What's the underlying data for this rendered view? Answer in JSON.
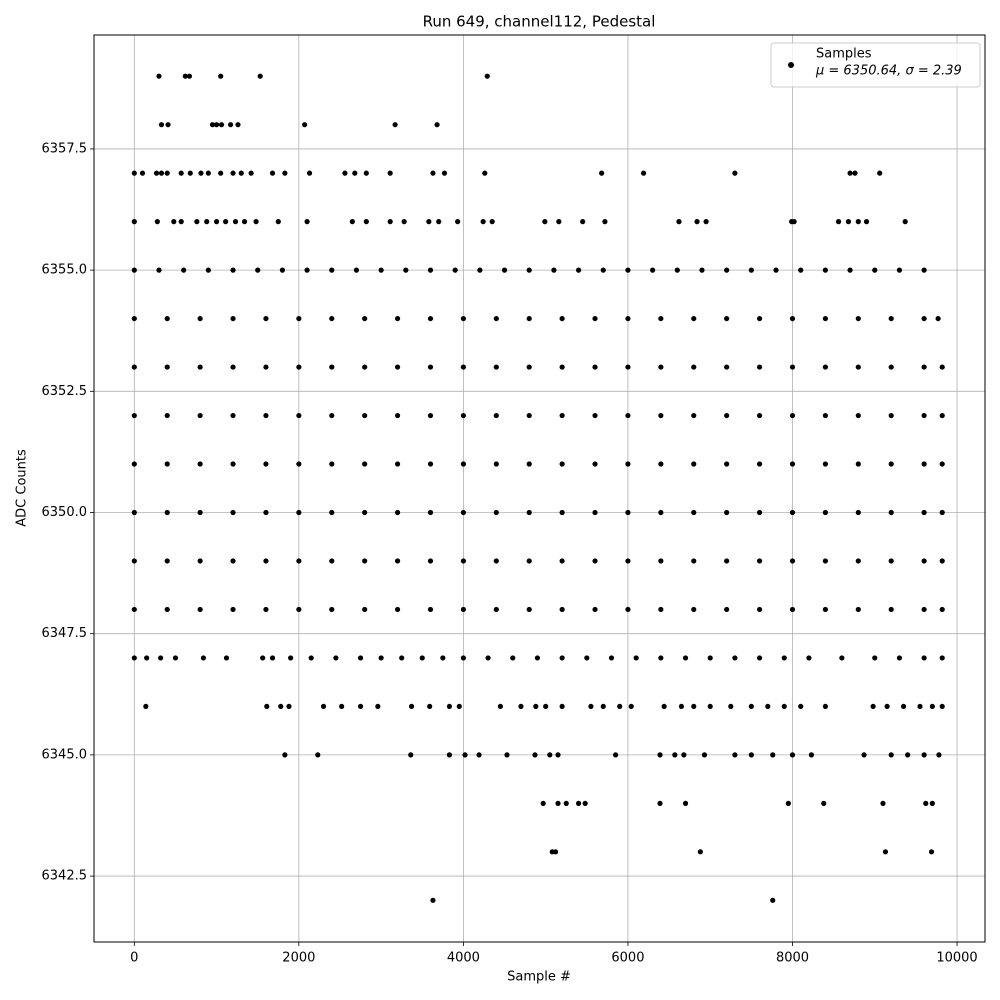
{
  "chart_data": {
    "type": "scatter",
    "title": "Run 649, channel112, Pedestal",
    "xlabel": "Sample #",
    "ylabel": "ADC Counts",
    "xlim": [
      -490,
      10340
    ],
    "ylim": [
      6341.14,
      6359.85
    ],
    "xticks": [
      0,
      2000,
      4000,
      6000,
      8000,
      10000
    ],
    "yticks": [
      6342.5,
      {
        "value": 6345,
        "label": "6345.0"
      },
      6347.5,
      {
        "value": 6350,
        "label": "6350.0"
      },
      6352.5,
      {
        "value": 6355,
        "label": "6355.0"
      },
      6357.5
    ],
    "grid": true,
    "legend": "upper right",
    "series": [
      {
        "name": "Samples",
        "stats": "μ = 6350.64, σ = 2.39",
        "color": "#000000",
        "x": [
          300,
          620,
          670,
          1050,
          1530,
          4290,
          330,
          410,
          950,
          1000,
          1060,
          1170,
          1260,
          2070,
          3170,
          3680,
          0,
          100,
          270,
          330,
          400,
          570,
          680,
          810,
          900,
          1050,
          1200,
          1300,
          1420,
          1680,
          1830,
          2130,
          2560,
          2680,
          2820,
          3110,
          3630,
          3770,
          4260,
          5680,
          6190,
          7300,
          8700,
          8760,
          9060,
          0,
          280,
          480,
          570,
          760,
          880,
          1000,
          1110,
          1230,
          1340,
          1480,
          1750,
          2100,
          2650,
          2820,
          3110,
          3280,
          3580,
          3700,
          3930,
          4240,
          4350,
          4990,
          5160,
          5450,
          5720,
          6620,
          6840,
          6950,
          7990,
          8020,
          8560,
          8680,
          8800,
          8900,
          9370,
          0,
          300,
          600,
          900,
          1200,
          1500,
          1800,
          2100,
          2400,
          2700,
          3000,
          3300,
          3600,
          3900,
          4200,
          4500,
          4800,
          5100,
          5400,
          5700,
          6000,
          6300,
          6600,
          6900,
          7200,
          7500,
          7800,
          8100,
          8400,
          8700,
          9000,
          9300,
          9600,
          0,
          400,
          800,
          1200,
          1600,
          2000,
          2400,
          2800,
          3200,
          3600,
          4000,
          4400,
          4800,
          5200,
          5600,
          6000,
          6400,
          6800,
          7200,
          7600,
          8000,
          8400,
          8800,
          9200,
          9600,
          9770,
          0,
          400,
          800,
          1200,
          1600,
          2000,
          2400,
          2800,
          3200,
          3600,
          4000,
          4400,
          4800,
          5200,
          5600,
          6000,
          6400,
          6800,
          7200,
          7600,
          8000,
          8400,
          8800,
          9200,
          9600,
          9820,
          0,
          400,
          800,
          1200,
          1600,
          2000,
          2400,
          2800,
          3200,
          3600,
          4000,
          4400,
          4800,
          5200,
          5600,
          6000,
          6400,
          6800,
          7200,
          7600,
          8000,
          8400,
          8800,
          9200,
          9600,
          9820,
          0,
          400,
          800,
          1200,
          1600,
          2000,
          2400,
          2800,
          3200,
          3600,
          4000,
          4400,
          4800,
          5200,
          5600,
          6000,
          6400,
          6800,
          7200,
          7600,
          8000,
          8400,
          8800,
          9200,
          9600,
          9820,
          0,
          400,
          800,
          1200,
          1600,
          2000,
          2400,
          2800,
          3200,
          3600,
          4000,
          4400,
          4800,
          5200,
          5600,
          6000,
          6400,
          6800,
          7200,
          7600,
          8000,
          8400,
          8800,
          9200,
          9600,
          9820,
          0,
          400,
          800,
          1200,
          1600,
          2000,
          2400,
          2800,
          3200,
          3600,
          4000,
          4400,
          4800,
          5200,
          5600,
          6000,
          6400,
          6800,
          7200,
          7600,
          8000,
          8400,
          8800,
          9200,
          9600,
          9820,
          0,
          400,
          800,
          1200,
          1600,
          2000,
          2400,
          2800,
          3200,
          3600,
          4000,
          4400,
          4800,
          5200,
          5600,
          6000,
          6400,
          6800,
          7200,
          7600,
          8000,
          8400,
          8800,
          9200,
          9600,
          9820,
          0,
          150,
          320,
          500,
          840,
          1120,
          1560,
          1680,
          1900,
          2150,
          2450,
          2750,
          3000,
          3250,
          3500,
          3750,
          4000,
          4300,
          4600,
          4900,
          5200,
          5500,
          5800,
          6100,
          6400,
          6700,
          7000,
          7300,
          7600,
          7900,
          8200,
          8600,
          9000,
          9300,
          9600,
          9820,
          140,
          1610,
          1780,
          1880,
          2300,
          2520,
          2750,
          2960,
          3370,
          3590,
          3830,
          3950,
          4450,
          4700,
          4880,
          5000,
          5200,
          5550,
          5700,
          5900,
          6040,
          6440,
          6650,
          6800,
          7000,
          7250,
          7500,
          7700,
          7900,
          8100,
          8400,
          8980,
          9150,
          9350,
          9550,
          9700,
          9820,
          1830,
          2230,
          3360,
          3830,
          4020,
          4190,
          4530,
          4870,
          5050,
          5150,
          5850,
          6390,
          6570,
          6680,
          6930,
          7300,
          7500,
          7760,
          8000,
          8230,
          8870,
          9200,
          9400,
          9600,
          9780,
          4970,
          5150,
          5250,
          5400,
          5480,
          6390,
          6700,
          7950,
          8380,
          9100,
          9620,
          9700,
          5080,
          5120,
          6880,
          9130,
          9690,
          3630,
          7760
        ],
        "y": [
          6359,
          6359,
          6359,
          6359,
          6359,
          6359,
          6358,
          6358,
          6358,
          6358,
          6358,
          6358,
          6358,
          6358,
          6358,
          6358,
          6357,
          6357,
          6357,
          6357,
          6357,
          6357,
          6357,
          6357,
          6357,
          6357,
          6357,
          6357,
          6357,
          6357,
          6357,
          6357,
          6357,
          6357,
          6357,
          6357,
          6357,
          6357,
          6357,
          6357,
          6357,
          6357,
          6357,
          6357,
          6357,
          6356,
          6356,
          6356,
          6356,
          6356,
          6356,
          6356,
          6356,
          6356,
          6356,
          6356,
          6356,
          6356,
          6356,
          6356,
          6356,
          6356,
          6356,
          6356,
          6356,
          6356,
          6356,
          6356,
          6356,
          6356,
          6356,
          6356,
          6356,
          6356,
          6356,
          6356,
          6356,
          6356,
          6356,
          6356,
          6356,
          6355,
          6355,
          6355,
          6355,
          6355,
          6355,
          6355,
          6355,
          6355,
          6355,
          6355,
          6355,
          6355,
          6355,
          6355,
          6355,
          6355,
          6355,
          6355,
          6355,
          6355,
          6355,
          6355,
          6355,
          6355,
          6355,
          6355,
          6355,
          6355,
          6355,
          6355,
          6355,
          6355,
          6354,
          6354,
          6354,
          6354,
          6354,
          6354,
          6354,
          6354,
          6354,
          6354,
          6354,
          6354,
          6354,
          6354,
          6354,
          6354,
          6354,
          6354,
          6354,
          6354,
          6354,
          6354,
          6354,
          6354,
          6354,
          6354,
          6353,
          6353,
          6353,
          6353,
          6353,
          6353,
          6353,
          6353,
          6353,
          6353,
          6353,
          6353,
          6353,
          6353,
          6353,
          6353,
          6353,
          6353,
          6353,
          6353,
          6353,
          6353,
          6353,
          6353,
          6353,
          6353,
          6352,
          6352,
          6352,
          6352,
          6352,
          6352,
          6352,
          6352,
          6352,
          6352,
          6352,
          6352,
          6352,
          6352,
          6352,
          6352,
          6352,
          6352,
          6352,
          6352,
          6352,
          6352,
          6352,
          6352,
          6352,
          6352,
          6351,
          6351,
          6351,
          6351,
          6351,
          6351,
          6351,
          6351,
          6351,
          6351,
          6351,
          6351,
          6351,
          6351,
          6351,
          6351,
          6351,
          6351,
          6351,
          6351,
          6351,
          6351,
          6351,
          6351,
          6351,
          6351,
          6350,
          6350,
          6350,
          6350,
          6350,
          6350,
          6350,
          6350,
          6350,
          6350,
          6350,
          6350,
          6350,
          6350,
          6350,
          6350,
          6350,
          6350,
          6350,
          6350,
          6350,
          6350,
          6350,
          6350,
          6350,
          6350,
          6349,
          6349,
          6349,
          6349,
          6349,
          6349,
          6349,
          6349,
          6349,
          6349,
          6349,
          6349,
          6349,
          6349,
          6349,
          6349,
          6349,
          6349,
          6349,
          6349,
          6349,
          6349,
          6349,
          6349,
          6349,
          6349,
          6348,
          6348,
          6348,
          6348,
          6348,
          6348,
          6348,
          6348,
          6348,
          6348,
          6348,
          6348,
          6348,
          6348,
          6348,
          6348,
          6348,
          6348,
          6348,
          6348,
          6348,
          6348,
          6348,
          6348,
          6348,
          6348,
          6347,
          6347,
          6347,
          6347,
          6347,
          6347,
          6347,
          6347,
          6347,
          6347,
          6347,
          6347,
          6347,
          6347,
          6347,
          6347,
          6347,
          6347,
          6347,
          6347,
          6347,
          6347,
          6347,
          6347,
          6347,
          6347,
          6347,
          6347,
          6347,
          6347,
          6347,
          6347,
          6347,
          6347,
          6347,
          6347,
          6346,
          6346,
          6346,
          6346,
          6346,
          6346,
          6346,
          6346,
          6346,
          6346,
          6346,
          6346,
          6346,
          6346,
          6346,
          6346,
          6346,
          6346,
          6346,
          6346,
          6346,
          6346,
          6346,
          6346,
          6346,
          6346,
          6346,
          6346,
          6346,
          6346,
          6346,
          6346,
          6346,
          6346,
          6346,
          6346,
          6346,
          6345,
          6345,
          6345,
          6345,
          6345,
          6345,
          6345,
          6345,
          6345,
          6345,
          6345,
          6345,
          6345,
          6345,
          6345,
          6345,
          6345,
          6345,
          6345,
          6345,
          6345,
          6345,
          6345,
          6345,
          6345,
          6344,
          6344,
          6344,
          6344,
          6344,
          6344,
          6344,
          6344,
          6344,
          6344,
          6344,
          6344,
          6343,
          6343,
          6343,
          6343,
          6343,
          6342,
          6342
        ]
      }
    ]
  }
}
